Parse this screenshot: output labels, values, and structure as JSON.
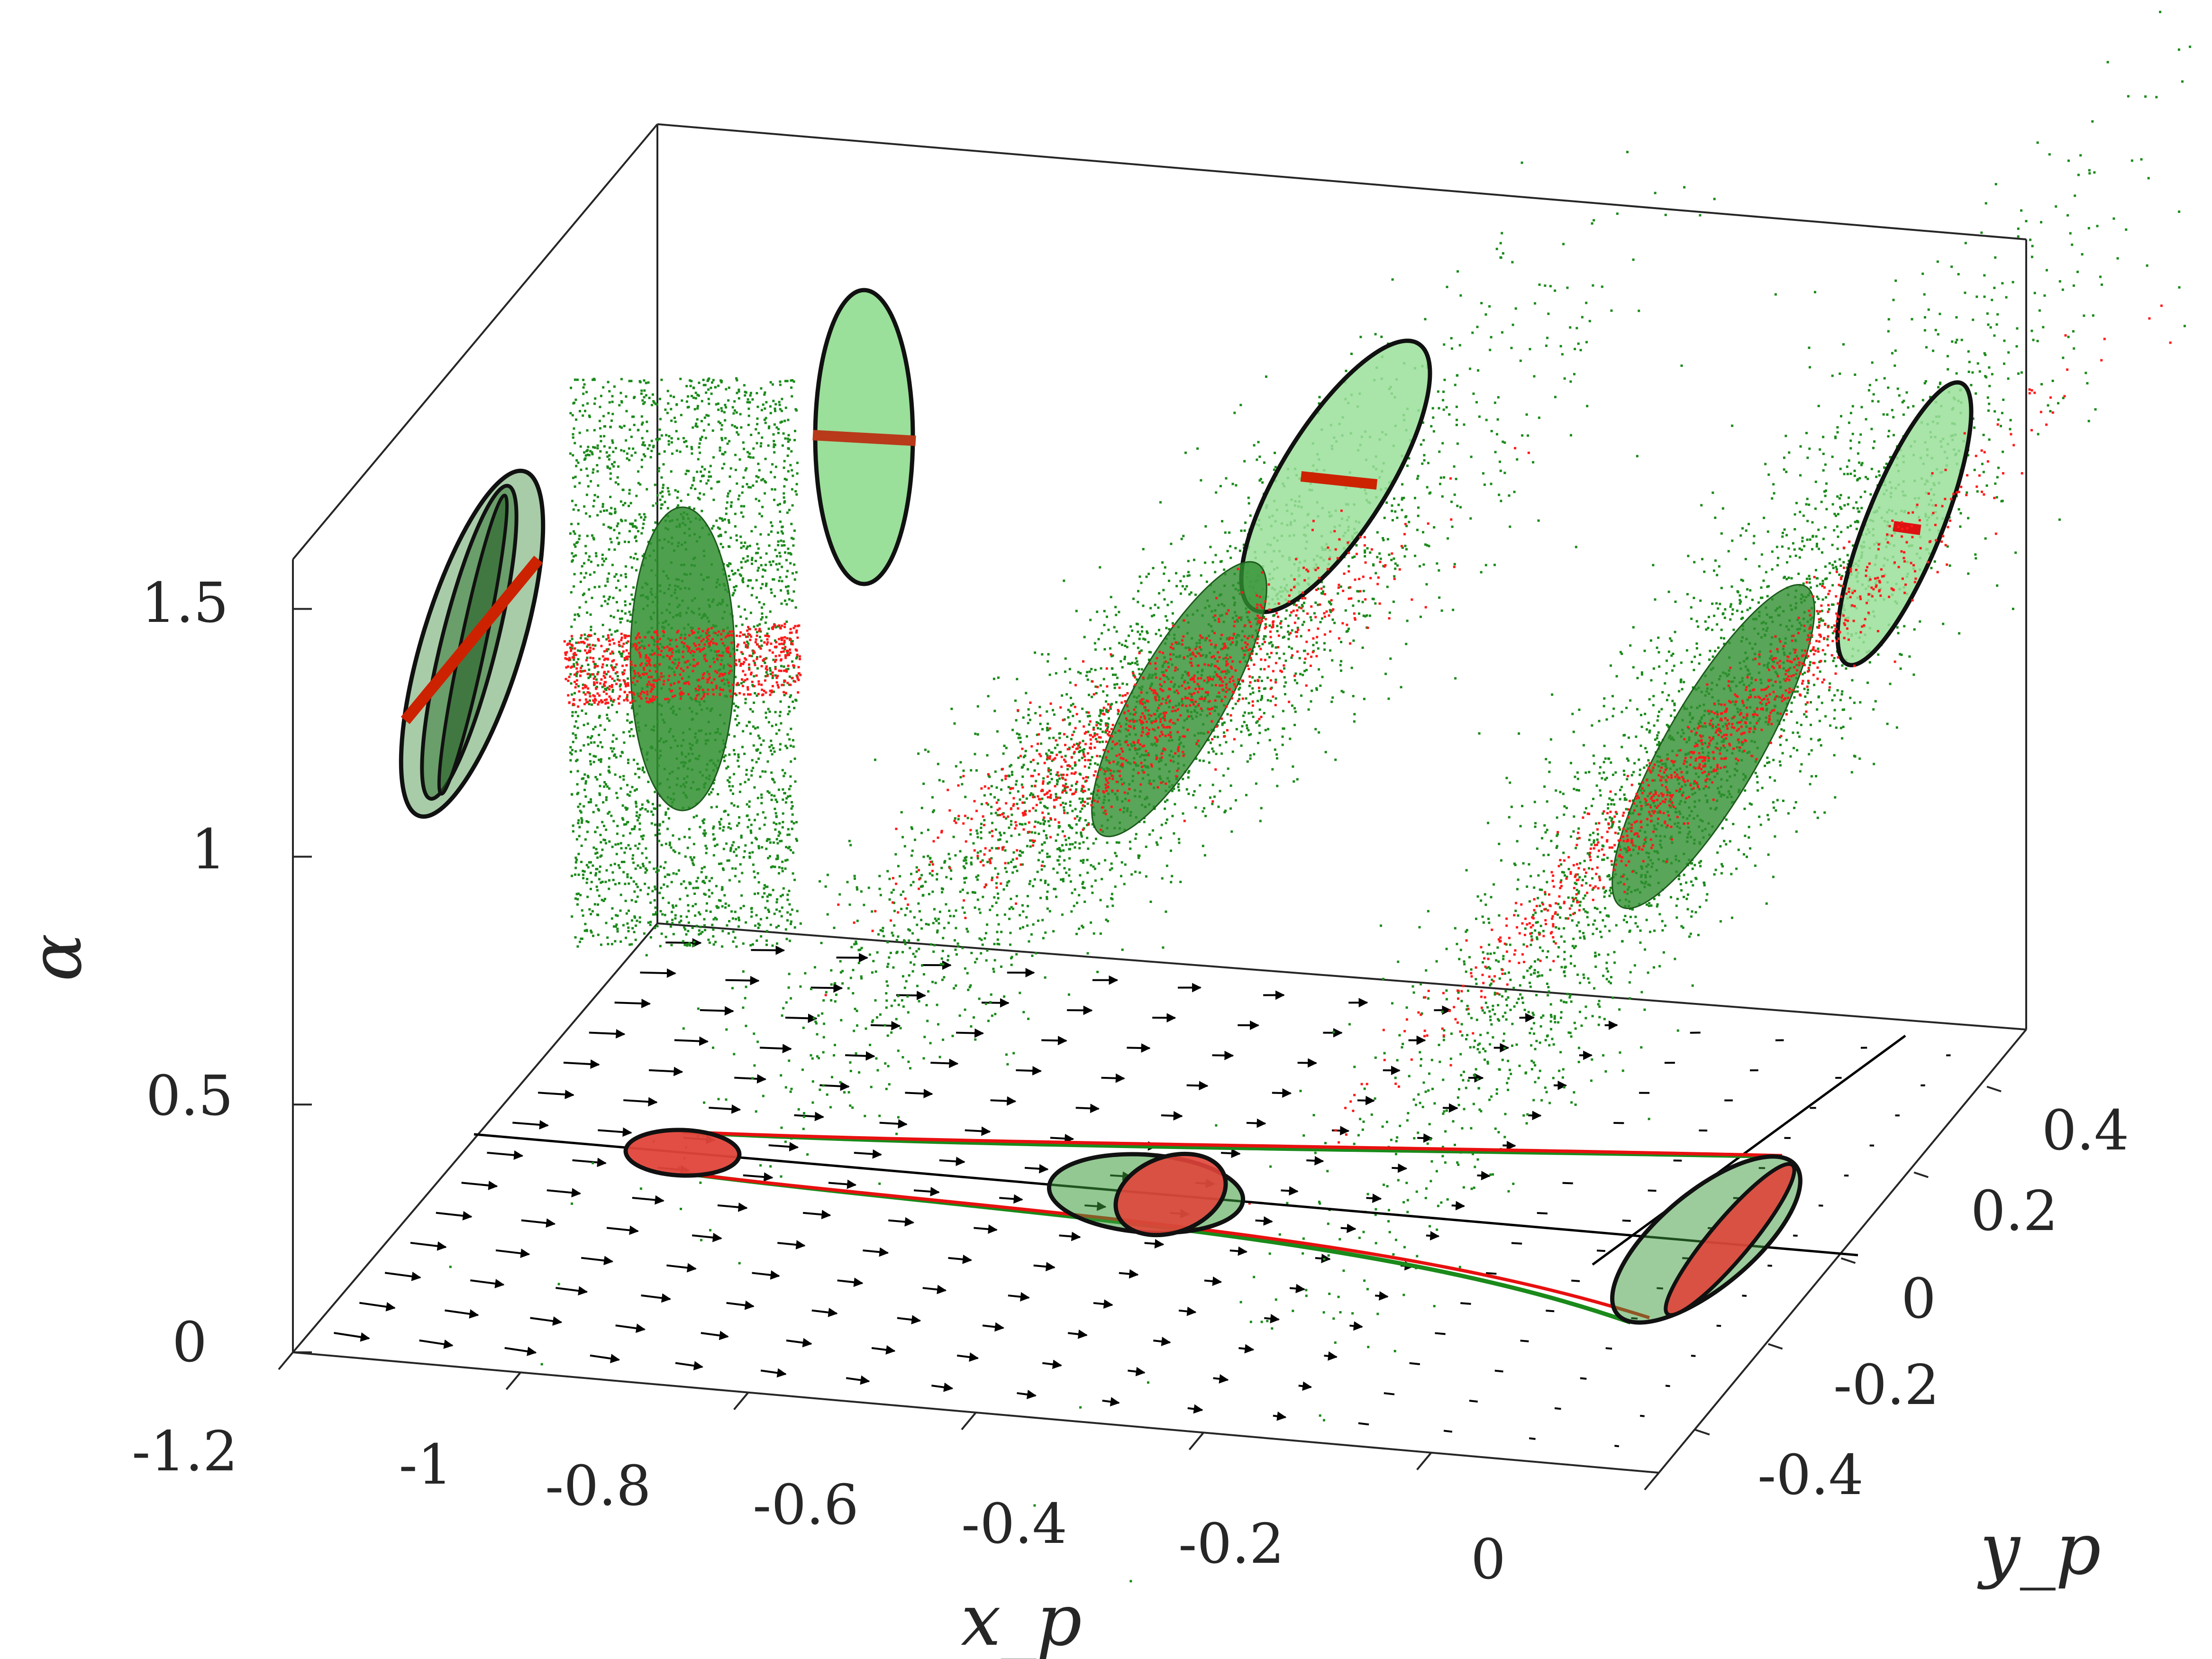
{
  "chart_data": {
    "type": "scatter",
    "title": "",
    "xlabel": "x_p",
    "ylabel": "y_p",
    "zlabel": "α",
    "xlim": [
      -1.2,
      0.0
    ],
    "ylim": [
      -0.5,
      0.5
    ],
    "zlim": [
      0,
      1.6
    ],
    "x_ticks": [
      "-1.2",
      "-1",
      "-0.8",
      "-0.6",
      "-0.4",
      "-0.2",
      "0"
    ],
    "y_ticks": [
      "-0.4",
      "-0.2",
      "0",
      "0.2",
      "0.4"
    ],
    "z_ticks": [
      "0",
      "0.5",
      "1",
      "1.5"
    ],
    "x_tick_values": [
      -1.2,
      -1.0,
      -0.8,
      -0.6,
      -0.4,
      -0.2,
      0.0
    ],
    "y_tick_values": [
      -0.4,
      -0.2,
      0.0,
      0.2,
      0.4
    ],
    "z_tick_values": [
      0,
      0.5,
      1,
      1.5
    ],
    "grid": false,
    "box": true,
    "colors": {
      "green_samples": "#1a8a1a",
      "red_samples": "#ff1a1a",
      "green_fill": "#8fd98f",
      "dark_green_fill": "#3a9a3a",
      "red_fill": "#e0443a",
      "trajectory_green": "#1a8a1a",
      "trajectory_red": "#e81010",
      "arrows": "#000000"
    },
    "uncertainty_sets": [
      {
        "x_center": -0.9,
        "y_center": 0.0,
        "alpha_center": 1.3
      },
      {
        "x_center": -0.55,
        "y_center": 0.0,
        "alpha_center": 1.25
      },
      {
        "x_center": -0.05,
        "y_center": -0.05,
        "alpha_center": 1.2
      }
    ],
    "trajectory_start": {
      "x": -0.9,
      "y": 0.0
    },
    "trajectory_end_green": {
      "x": -0.05,
      "y_range": [
        -0.3,
        0.38
      ]
    },
    "trajectory_end_red": {
      "x": -0.05,
      "y_range": [
        -0.25,
        0.36
      ]
    }
  }
}
